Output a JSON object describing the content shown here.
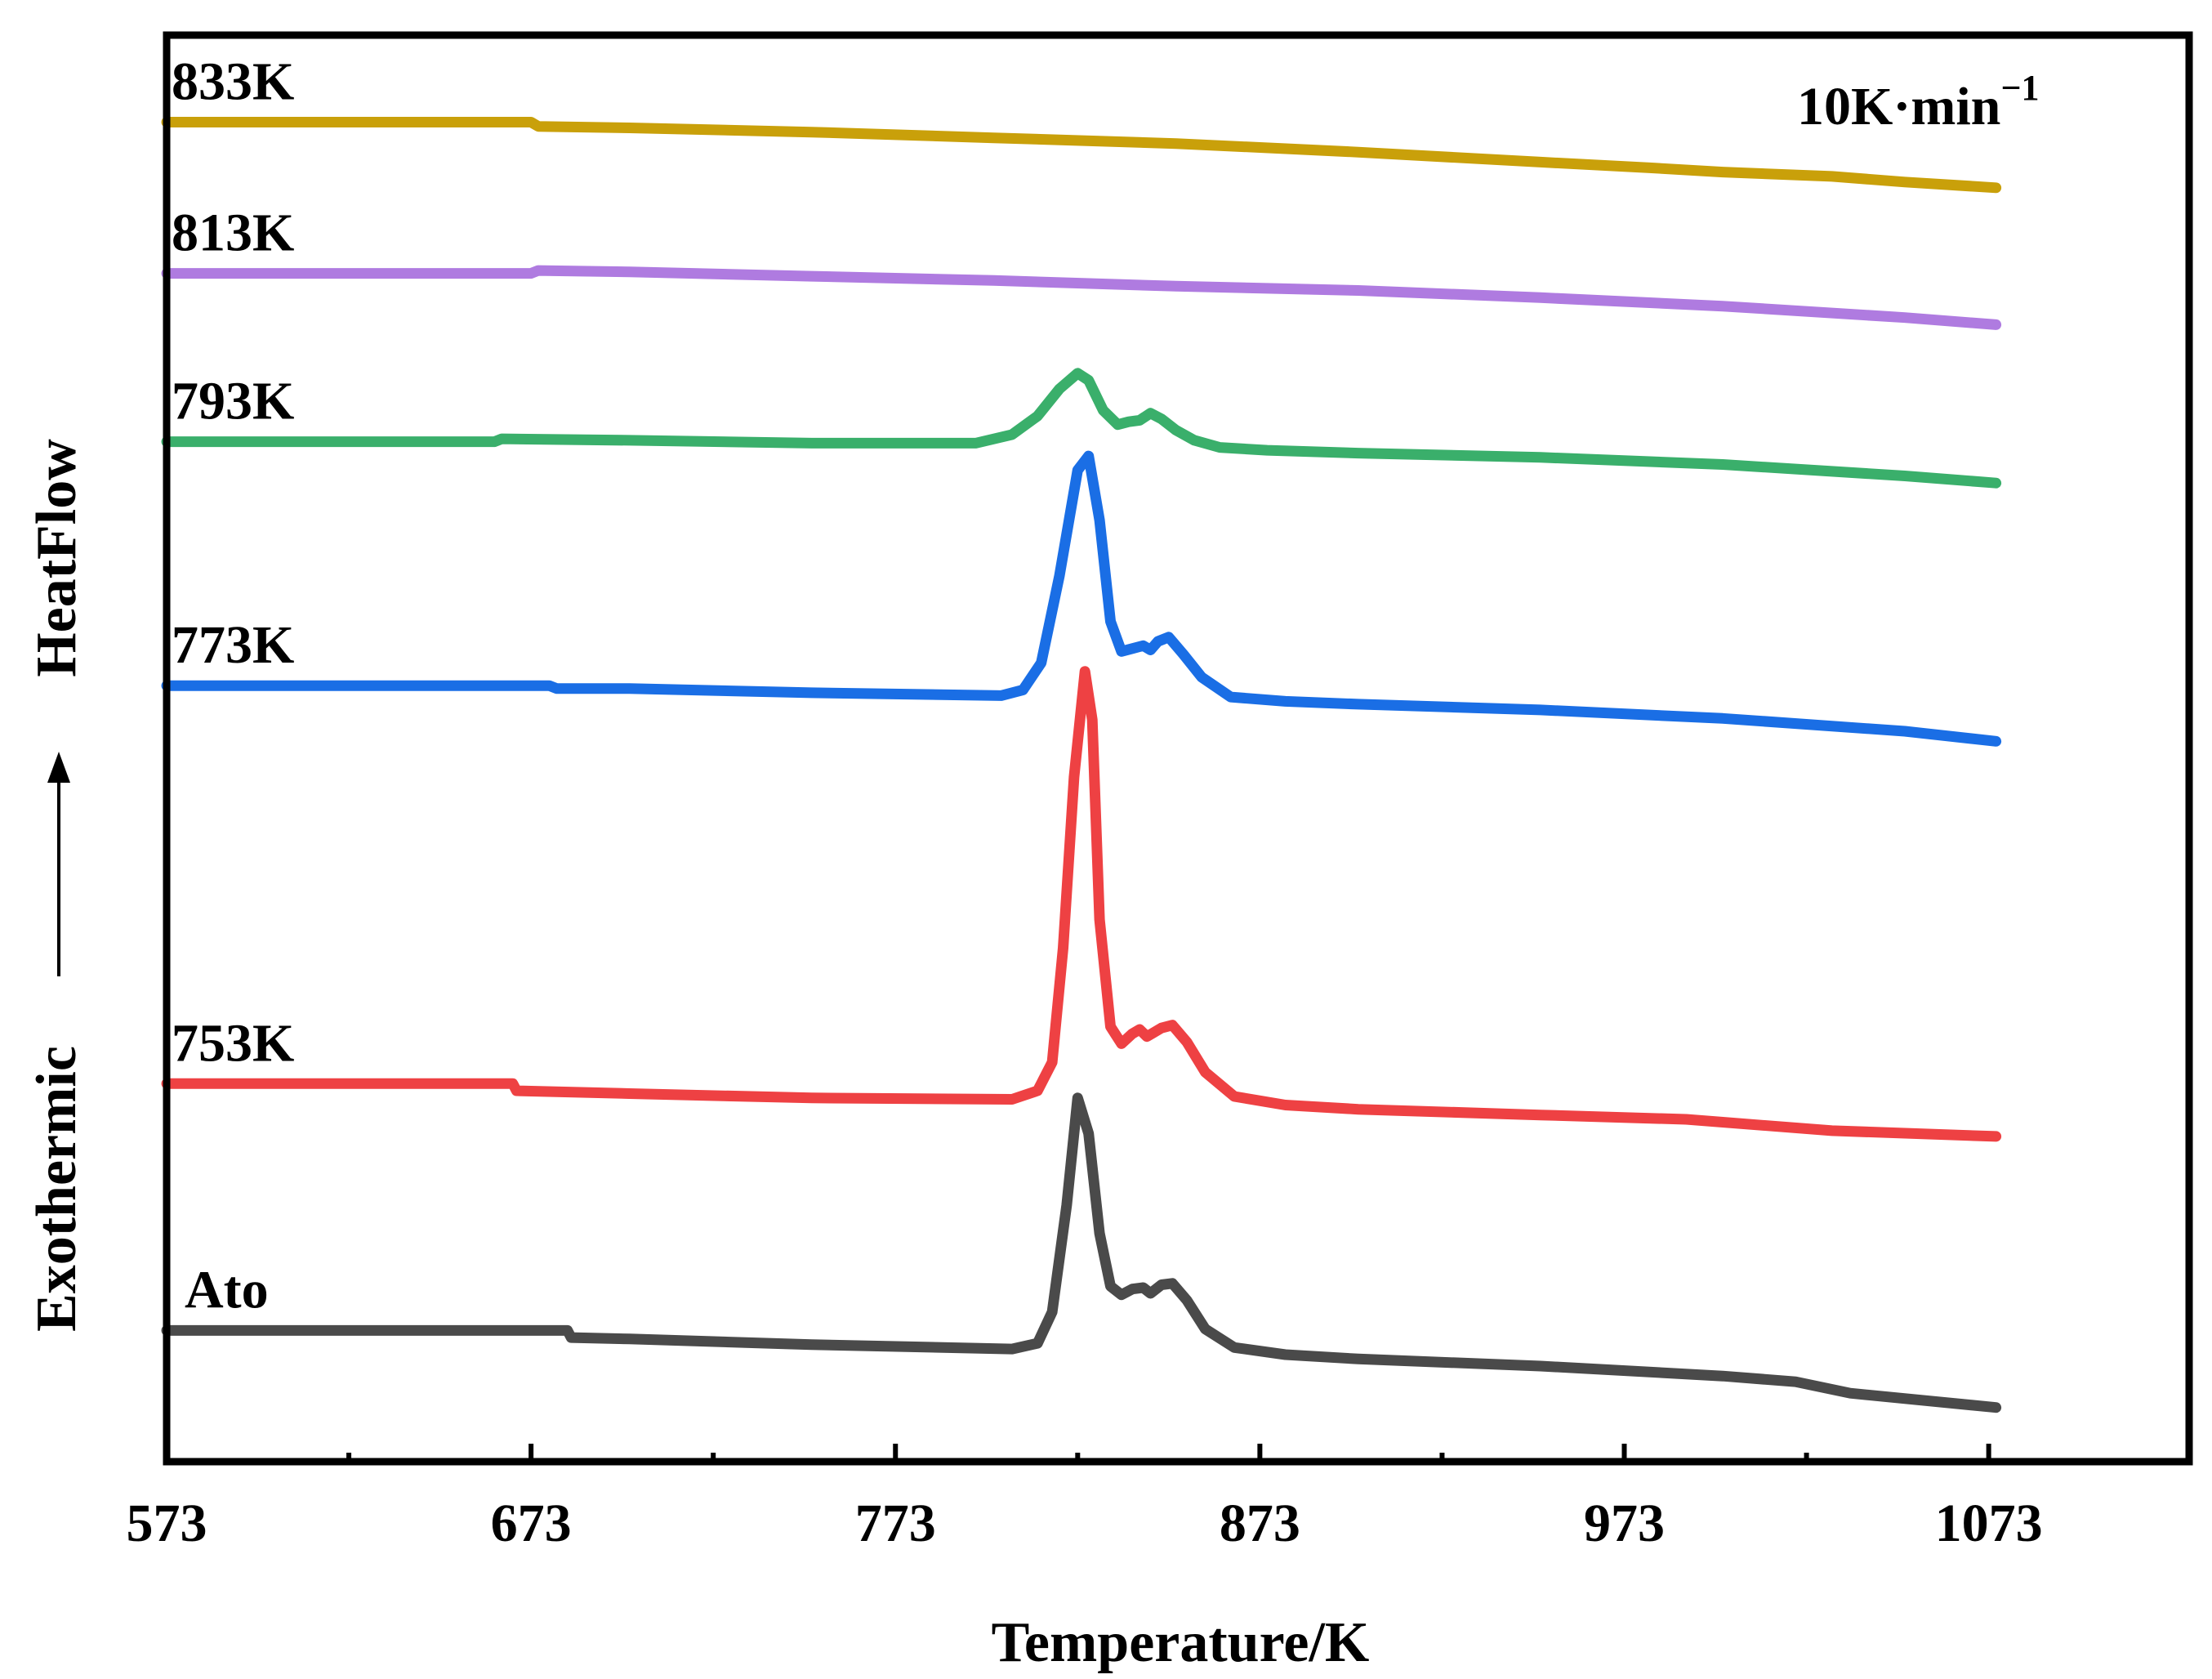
{
  "chart_data": {
    "type": "line",
    "title": "",
    "xlabel": "Temperature/K",
    "ylabel_left": "Exothermic",
    "ylabel_right": "HeatFlow",
    "xlim": [
      573,
      1128
    ],
    "ylim": [
      0,
      100
    ],
    "xticks": [
      573,
      673,
      773,
      873,
      973,
      1073
    ],
    "xtick_labels": [
      "573",
      "673",
      "773",
      "873",
      "973",
      "1073"
    ],
    "minor_xticks": [
      623,
      723,
      823,
      923,
      1023
    ],
    "annotation": {
      "text": "10K·min",
      "superscript": "−1"
    },
    "yaxis_ticks": "none",
    "legend": "inline labels at left",
    "series": [
      {
        "name": "833K",
        "color": "#C9A00A",
        "points": [
          [
            573,
            93.9
          ],
          [
            673,
            93.9
          ],
          [
            675,
            93.6
          ],
          [
            700,
            93.5
          ],
          [
            750,
            93.2
          ],
          [
            800,
            92.8
          ],
          [
            850,
            92.4
          ],
          [
            900,
            91.8
          ],
          [
            950,
            91.1
          ],
          [
            980,
            90.7
          ],
          [
            1000,
            90.4
          ],
          [
            1030,
            90.1
          ],
          [
            1050,
            89.7
          ],
          [
            1075,
            89.3
          ]
        ]
      },
      {
        "name": "813K",
        "color": "#AF7BE0",
        "points": [
          [
            573,
            83.3
          ],
          [
            673,
            83.3
          ],
          [
            675,
            83.5
          ],
          [
            700,
            83.4
          ],
          [
            750,
            83.1
          ],
          [
            800,
            82.8
          ],
          [
            850,
            82.4
          ],
          [
            900,
            82.1
          ],
          [
            950,
            81.6
          ],
          [
            1000,
            81.0
          ],
          [
            1050,
            80.2
          ],
          [
            1075,
            79.7
          ]
        ]
      },
      {
        "name": "793K",
        "color": "#3AAF6B",
        "points": [
          [
            573,
            71.5
          ],
          [
            663,
            71.5
          ],
          [
            665,
            71.7
          ],
          [
            700,
            71.6
          ],
          [
            750,
            71.4
          ],
          [
            795,
            71.4
          ],
          [
            805,
            72.0
          ],
          [
            812,
            73.3
          ],
          [
            818,
            75.2
          ],
          [
            823,
            76.3
          ],
          [
            826,
            75.8
          ],
          [
            830,
            73.7
          ],
          [
            834,
            72.7
          ],
          [
            837,
            72.9
          ],
          [
            840,
            73.0
          ],
          [
            843,
            73.5
          ],
          [
            846,
            73.1
          ],
          [
            850,
            72.3
          ],
          [
            855,
            71.6
          ],
          [
            862,
            71.1
          ],
          [
            875,
            70.9
          ],
          [
            900,
            70.7
          ],
          [
            950,
            70.4
          ],
          [
            1000,
            69.9
          ],
          [
            1050,
            69.1
          ],
          [
            1075,
            68.6
          ]
        ]
      },
      {
        "name": "773K",
        "color": "#1A6EE5",
        "points": [
          [
            573,
            54.4
          ],
          [
            678,
            54.4
          ],
          [
            680,
            54.2
          ],
          [
            700,
            54.2
          ],
          [
            750,
            53.9
          ],
          [
            802,
            53.7
          ],
          [
            808,
            54.1
          ],
          [
            813,
            56.0
          ],
          [
            818,
            62.1
          ],
          [
            823,
            69.5
          ],
          [
            826,
            70.5
          ],
          [
            829,
            66.0
          ],
          [
            832,
            58.9
          ],
          [
            835,
            56.8
          ],
          [
            838,
            57.0
          ],
          [
            841,
            57.2
          ],
          [
            843,
            56.9
          ],
          [
            845,
            57.5
          ],
          [
            848,
            57.8
          ],
          [
            852,
            56.6
          ],
          [
            857,
            55.0
          ],
          [
            865,
            53.6
          ],
          [
            880,
            53.3
          ],
          [
            900,
            53.1
          ],
          [
            950,
            52.7
          ],
          [
            1000,
            52.1
          ],
          [
            1050,
            51.2
          ],
          [
            1075,
            50.5
          ]
        ]
      },
      {
        "name": "753K",
        "color": "#EE4143",
        "points": [
          [
            573,
            26.5
          ],
          [
            668,
            26.5
          ],
          [
            669,
            26.0
          ],
          [
            700,
            25.8
          ],
          [
            750,
            25.5
          ],
          [
            805,
            25.4
          ],
          [
            812,
            26.0
          ],
          [
            816,
            28.0
          ],
          [
            819,
            36.0
          ],
          [
            822,
            48.0
          ],
          [
            825,
            55.4
          ],
          [
            827,
            52.0
          ],
          [
            829,
            38.0
          ],
          [
            832,
            30.5
          ],
          [
            835,
            29.3
          ],
          [
            838,
            30.0
          ],
          [
            840,
            30.3
          ],
          [
            842,
            29.8
          ],
          [
            846,
            30.4
          ],
          [
            849,
            30.6
          ],
          [
            853,
            29.4
          ],
          [
            858,
            27.3
          ],
          [
            866,
            25.6
          ],
          [
            880,
            25.0
          ],
          [
            900,
            24.7
          ],
          [
            950,
            24.3
          ],
          [
            990,
            24.0
          ],
          [
            1000,
            23.8
          ],
          [
            1030,
            23.2
          ],
          [
            1075,
            22.8
          ]
        ]
      },
      {
        "name": "Ato",
        "color": "#4A4A4A",
        "points": [
          [
            573,
            9.2
          ],
          [
            683,
            9.2
          ],
          [
            684,
            8.7
          ],
          [
            700,
            8.6
          ],
          [
            750,
            8.2
          ],
          [
            805,
            7.9
          ],
          [
            812,
            8.3
          ],
          [
            816,
            10.5
          ],
          [
            820,
            18.0
          ],
          [
            823,
            25.5
          ],
          [
            826,
            23.0
          ],
          [
            829,
            16.0
          ],
          [
            832,
            12.3
          ],
          [
            835,
            11.7
          ],
          [
            838,
            12.1
          ],
          [
            841,
            12.2
          ],
          [
            843,
            11.8
          ],
          [
            846,
            12.4
          ],
          [
            849,
            12.5
          ],
          [
            853,
            11.3
          ],
          [
            858,
            9.3
          ],
          [
            866,
            8.0
          ],
          [
            880,
            7.5
          ],
          [
            900,
            7.2
          ],
          [
            950,
            6.7
          ],
          [
            1000,
            6.0
          ],
          [
            1020,
            5.6
          ],
          [
            1035,
            4.8
          ],
          [
            1075,
            3.8
          ]
        ]
      }
    ]
  }
}
